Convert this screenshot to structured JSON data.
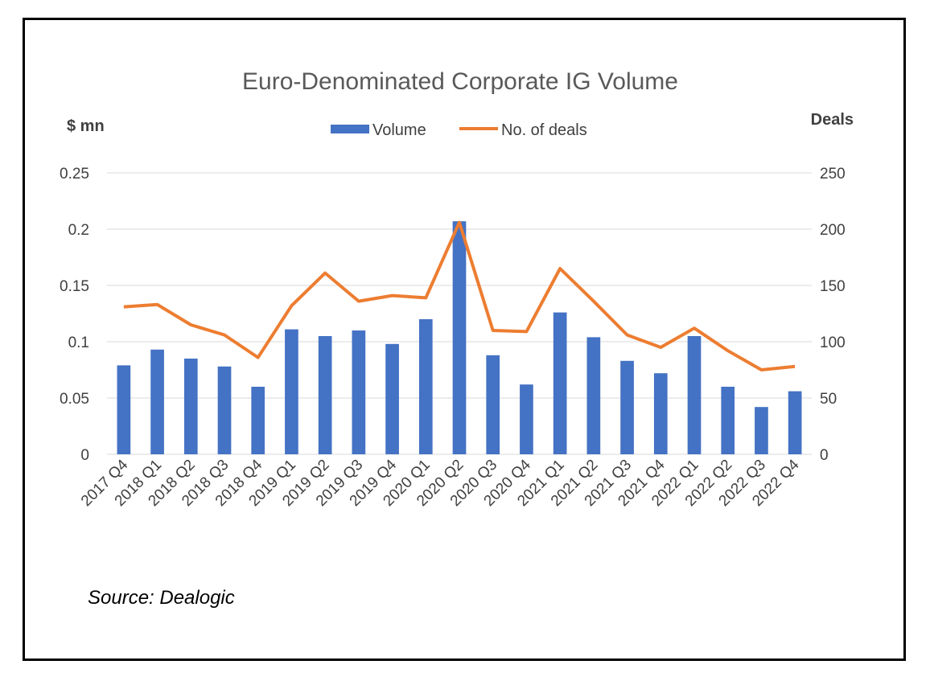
{
  "chart_data": {
    "type": "bar",
    "title": "Euro-Denominated Corporate IG Volume",
    "categories": [
      "2017 Q4",
      "2018 Q1",
      "2018 Q2",
      "2018 Q3",
      "2018 Q4",
      "2019 Q1",
      "2019 Q2",
      "2019 Q3",
      "2019 Q4",
      "2020 Q1",
      "2020 Q2",
      "2020 Q3",
      "2020 Q4",
      "2021 Q1",
      "2021 Q2",
      "2021 Q3",
      "2021 Q4",
      "2022 Q1",
      "2022 Q2",
      "2022 Q3",
      "2022 Q4"
    ],
    "series": [
      {
        "name": "Volume",
        "type": "bar",
        "axis": "left",
        "color": "#4472C4",
        "values": [
          0.079,
          0.093,
          0.085,
          0.078,
          0.06,
          0.111,
          0.105,
          0.11,
          0.098,
          0.12,
          0.207,
          0.088,
          0.062,
          0.126,
          0.104,
          0.083,
          0.072,
          0.105,
          0.06,
          0.042,
          0.056
        ]
      },
      {
        "name": "No. of deals",
        "type": "line",
        "axis": "right",
        "color": "#ED7D31",
        "values": [
          131,
          133,
          115,
          106,
          86,
          132,
          161,
          136,
          141,
          139,
          206,
          110,
          109,
          165,
          136,
          106,
          95,
          112,
          92,
          75,
          78
        ]
      }
    ],
    "ylabel": "$ mn",
    "y2label": "Deals",
    "ylim": [
      0,
      0.25
    ],
    "y2lim": [
      0,
      250
    ],
    "yticks": [
      "0",
      "0.05",
      "0.1",
      "0.15",
      "0.2",
      "0.25"
    ],
    "y2ticks": [
      "0",
      "50",
      "100",
      "150",
      "200",
      "250"
    ],
    "grid": true,
    "legend": "top-center"
  },
  "source_note": "Source: Dealogic"
}
